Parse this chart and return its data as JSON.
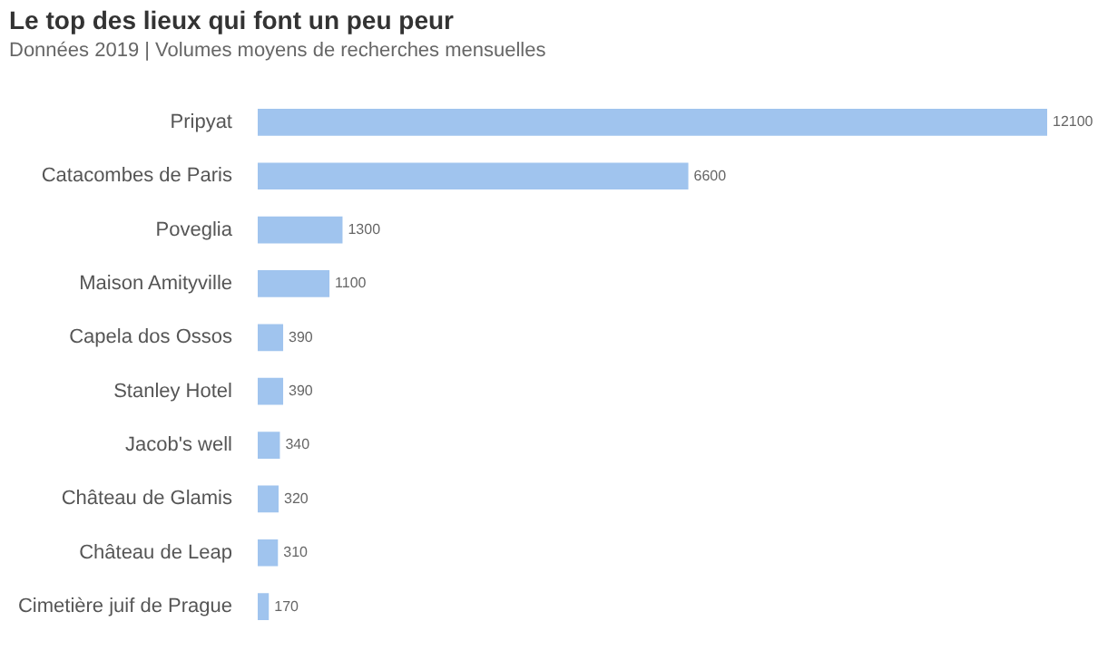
{
  "chart_data": {
    "type": "bar",
    "orientation": "horizontal",
    "title": "Le top des lieux qui font un peu peur",
    "subtitle": "Données 2019 | Volumes moyens de recherches mensuelles",
    "categories": [
      "Pripyat",
      "Catacombes de Paris",
      "Poveglia",
      "Maison Amityville",
      "Capela dos Ossos",
      "Stanley Hotel",
      "Jacob's well",
      "Château de Glamis",
      "Château de Leap",
      "Cimetière juif de Prague"
    ],
    "values": [
      12100,
      6600,
      1300,
      1100,
      390,
      390,
      340,
      320,
      310,
      170
    ],
    "color": "#a0c4ee",
    "data_labels": true,
    "legend": false
  }
}
